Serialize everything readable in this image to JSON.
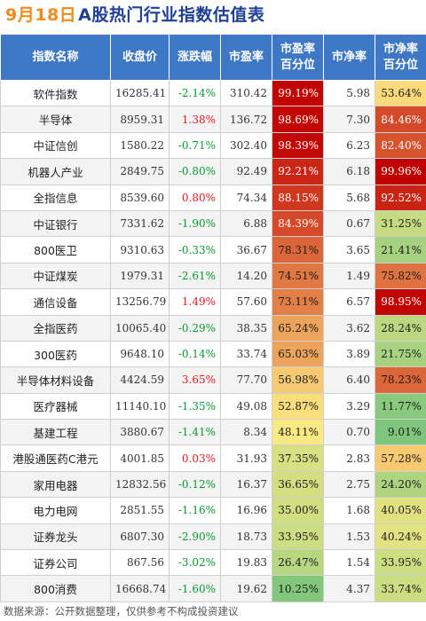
{
  "title": {
    "date": "9月18日",
    "text": "A股热门行业指数估值表"
  },
  "colors": {
    "header_bg": "#3e78c5",
    "title_text": "#1f3f94",
    "title_date": "#f08a1b",
    "up": "#e8191e",
    "down": "#0a9a2e",
    "scale_low": "#63be7b",
    "scale_mid": "#ffeb84",
    "scale_high": "#c00000"
  },
  "headers": [
    "指数名称",
    "收盘价",
    "涨跌幅",
    "市盈率",
    "市盈率\n百分位",
    "市净率",
    "市净率\n百分位"
  ],
  "chart_data": {
    "type": "table",
    "title": "9月18日 A股热门行业指数估值表",
    "columns": [
      "指数名称",
      "收盘价",
      "涨跌幅",
      "市盈率",
      "市盈率百分位",
      "市净率",
      "市净率百分位"
    ],
    "rows": [
      {
        "name": "软件指数",
        "close": "16285.41",
        "change": "-2.14%",
        "pe": "310.42",
        "pe_pct": "99.19%",
        "pb": "5.98",
        "pb_pct": "53.64%"
      },
      {
        "name": "半导体",
        "close": "8959.31",
        "change": "1.38%",
        "pe": "136.72",
        "pe_pct": "98.69%",
        "pb": "7.30",
        "pb_pct": "84.46%"
      },
      {
        "name": "中证信创",
        "close": "1580.22",
        "change": "-0.71%",
        "pe": "302.40",
        "pe_pct": "98.39%",
        "pb": "6.23",
        "pb_pct": "82.40%"
      },
      {
        "name": "机器人产业",
        "close": "2849.75",
        "change": "-0.80%",
        "pe": "92.49",
        "pe_pct": "92.21%",
        "pb": "6.18",
        "pb_pct": "99.96%"
      },
      {
        "name": "全指信息",
        "close": "8539.60",
        "change": "0.80%",
        "pe": "74.34",
        "pe_pct": "88.15%",
        "pb": "5.68",
        "pb_pct": "92.52%"
      },
      {
        "name": "中证银行",
        "close": "7331.62",
        "change": "-1.90%",
        "pe": "6.88",
        "pe_pct": "84.39%",
        "pb": "0.67",
        "pb_pct": "31.25%"
      },
      {
        "name": "800医卫",
        "close": "9310.63",
        "change": "-0.33%",
        "pe": "36.67",
        "pe_pct": "78.31%",
        "pb": "3.65",
        "pb_pct": "21.41%"
      },
      {
        "name": "中证煤炭",
        "close": "1979.31",
        "change": "-2.61%",
        "pe": "14.20",
        "pe_pct": "74.51%",
        "pb": "1.49",
        "pb_pct": "75.82%"
      },
      {
        "name": "通信设备",
        "close": "13256.79",
        "change": "1.49%",
        "pe": "57.60",
        "pe_pct": "73.11%",
        "pb": "6.57",
        "pb_pct": "98.95%"
      },
      {
        "name": "全指医药",
        "close": "10065.40",
        "change": "-0.29%",
        "pe": "38.35",
        "pe_pct": "65.24%",
        "pb": "3.62",
        "pb_pct": "28.24%"
      },
      {
        "name": "300医药",
        "close": "9648.10",
        "change": "-0.14%",
        "pe": "33.74",
        "pe_pct": "65.03%",
        "pb": "3.89",
        "pb_pct": "21.75%"
      },
      {
        "name": "半导体材料设备",
        "close": "4424.59",
        "change": "3.65%",
        "pe": "77.70",
        "pe_pct": "56.98%",
        "pb": "6.40",
        "pb_pct": "78.23%"
      },
      {
        "name": "医疗器械",
        "close": "11140.10",
        "change": "-1.35%",
        "pe": "49.08",
        "pe_pct": "52.87%",
        "pb": "3.29",
        "pb_pct": "11.77%"
      },
      {
        "name": "基建工程",
        "close": "3880.67",
        "change": "-1.41%",
        "pe": "8.34",
        "pe_pct": "48.11%",
        "pb": "0.70",
        "pb_pct": "9.01%"
      },
      {
        "name": "港股通医药C港元",
        "close": "4001.85",
        "change": "0.03%",
        "pe": "31.93",
        "pe_pct": "37.35%",
        "pb": "2.83",
        "pb_pct": "57.28%"
      },
      {
        "name": "家用电器",
        "close": "12832.56",
        "change": "-0.12%",
        "pe": "16.37",
        "pe_pct": "36.65%",
        "pb": "2.75",
        "pb_pct": "24.20%"
      },
      {
        "name": "电力电网",
        "close": "2851.55",
        "change": "-1.16%",
        "pe": "16.96",
        "pe_pct": "35.00%",
        "pb": "1.68",
        "pb_pct": "40.05%"
      },
      {
        "name": "证券龙头",
        "close": "6807.30",
        "change": "-2.90%",
        "pe": "18.73",
        "pe_pct": "33.95%",
        "pb": "1.53",
        "pb_pct": "40.24%"
      },
      {
        "name": "证券公司",
        "close": "867.56",
        "change": "-3.02%",
        "pe": "19.83",
        "pe_pct": "26.47%",
        "pb": "1.54",
        "pb_pct": "33.95%"
      },
      {
        "name": "800消费",
        "close": "16668.74",
        "change": "-1.60%",
        "pe": "19.62",
        "pe_pct": "10.25%",
        "pb": "4.37",
        "pb_pct": "33.74%"
      }
    ]
  },
  "footer": "数据来源：公开数据整理，仅供参考不构成投资建议"
}
